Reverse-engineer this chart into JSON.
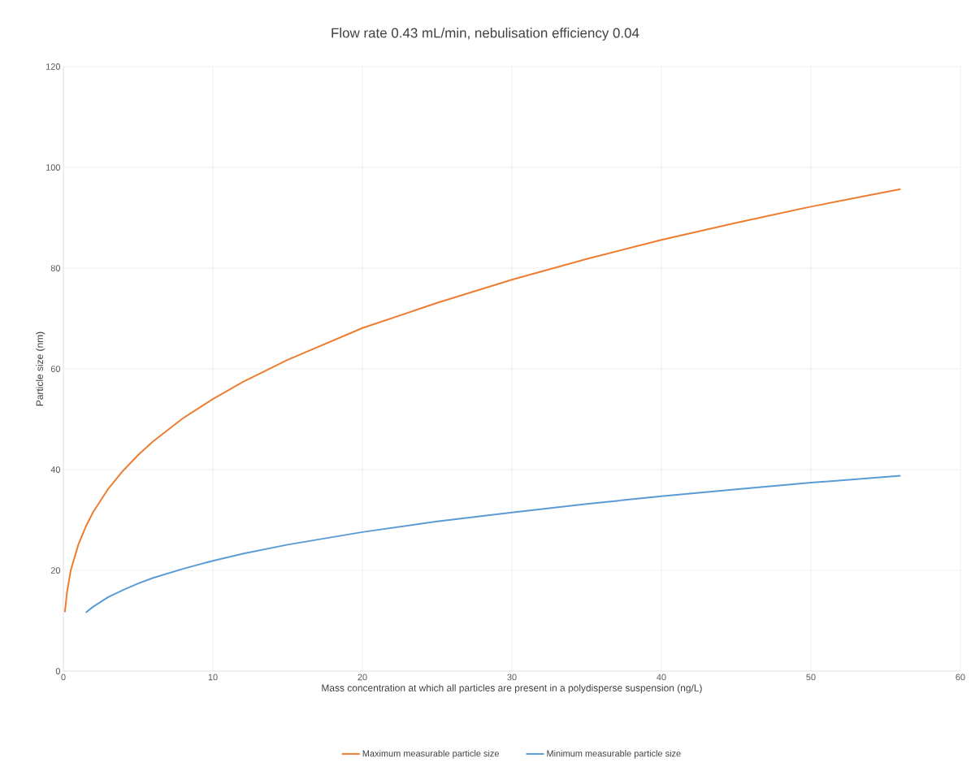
{
  "chart_data": {
    "type": "line",
    "title": "Flow rate 0.43 mL/min, nebulisation efficiency 0.04",
    "xlabel": "Mass concentration at which all particles are present in a polydisperse suspension (ng/L)",
    "ylabel": "Particle size (nm)",
    "xlim": [
      0,
      60
    ],
    "xticks": [
      0,
      10,
      20,
      30,
      40,
      50,
      60
    ],
    "ylim": [
      0,
      120
    ],
    "yticks": [
      0,
      20,
      40,
      60,
      80,
      100,
      120
    ],
    "grid": true,
    "legend": "bottom",
    "marker": "none",
    "line_style": "solid",
    "series": [
      {
        "name": "Maximum measurable particle size",
        "color": "#ed7d31",
        "x": [
          0.1,
          0.25,
          0.5,
          1,
          1.5,
          2,
          3,
          4,
          5,
          6,
          8,
          10,
          12,
          15,
          20,
          25,
          30,
          35,
          40,
          45,
          50,
          56
        ],
        "values": [
          11.7,
          15.8,
          20.1,
          25.1,
          28.7,
          31.6,
          36.2,
          39.8,
          42.9,
          45.6,
          50.2,
          54.0,
          57.4,
          61.8,
          68.1,
          73.1,
          77.7,
          81.8,
          85.6,
          89.0,
          92.2,
          95.7
        ]
      },
      {
        "name": "Minimum measurable particle size",
        "color": "#5b9bd5",
        "x": [
          1.5,
          2,
          3,
          4,
          5,
          6,
          8,
          10,
          12,
          15,
          20,
          25,
          30,
          35,
          40,
          45,
          50,
          56
        ],
        "values": [
          11.6,
          12.8,
          14.7,
          16.1,
          17.4,
          18.5,
          20.3,
          21.9,
          23.3,
          25.1,
          27.6,
          29.7,
          31.5,
          33.2,
          34.7,
          36.1,
          37.4,
          38.8
        ]
      }
    ]
  }
}
